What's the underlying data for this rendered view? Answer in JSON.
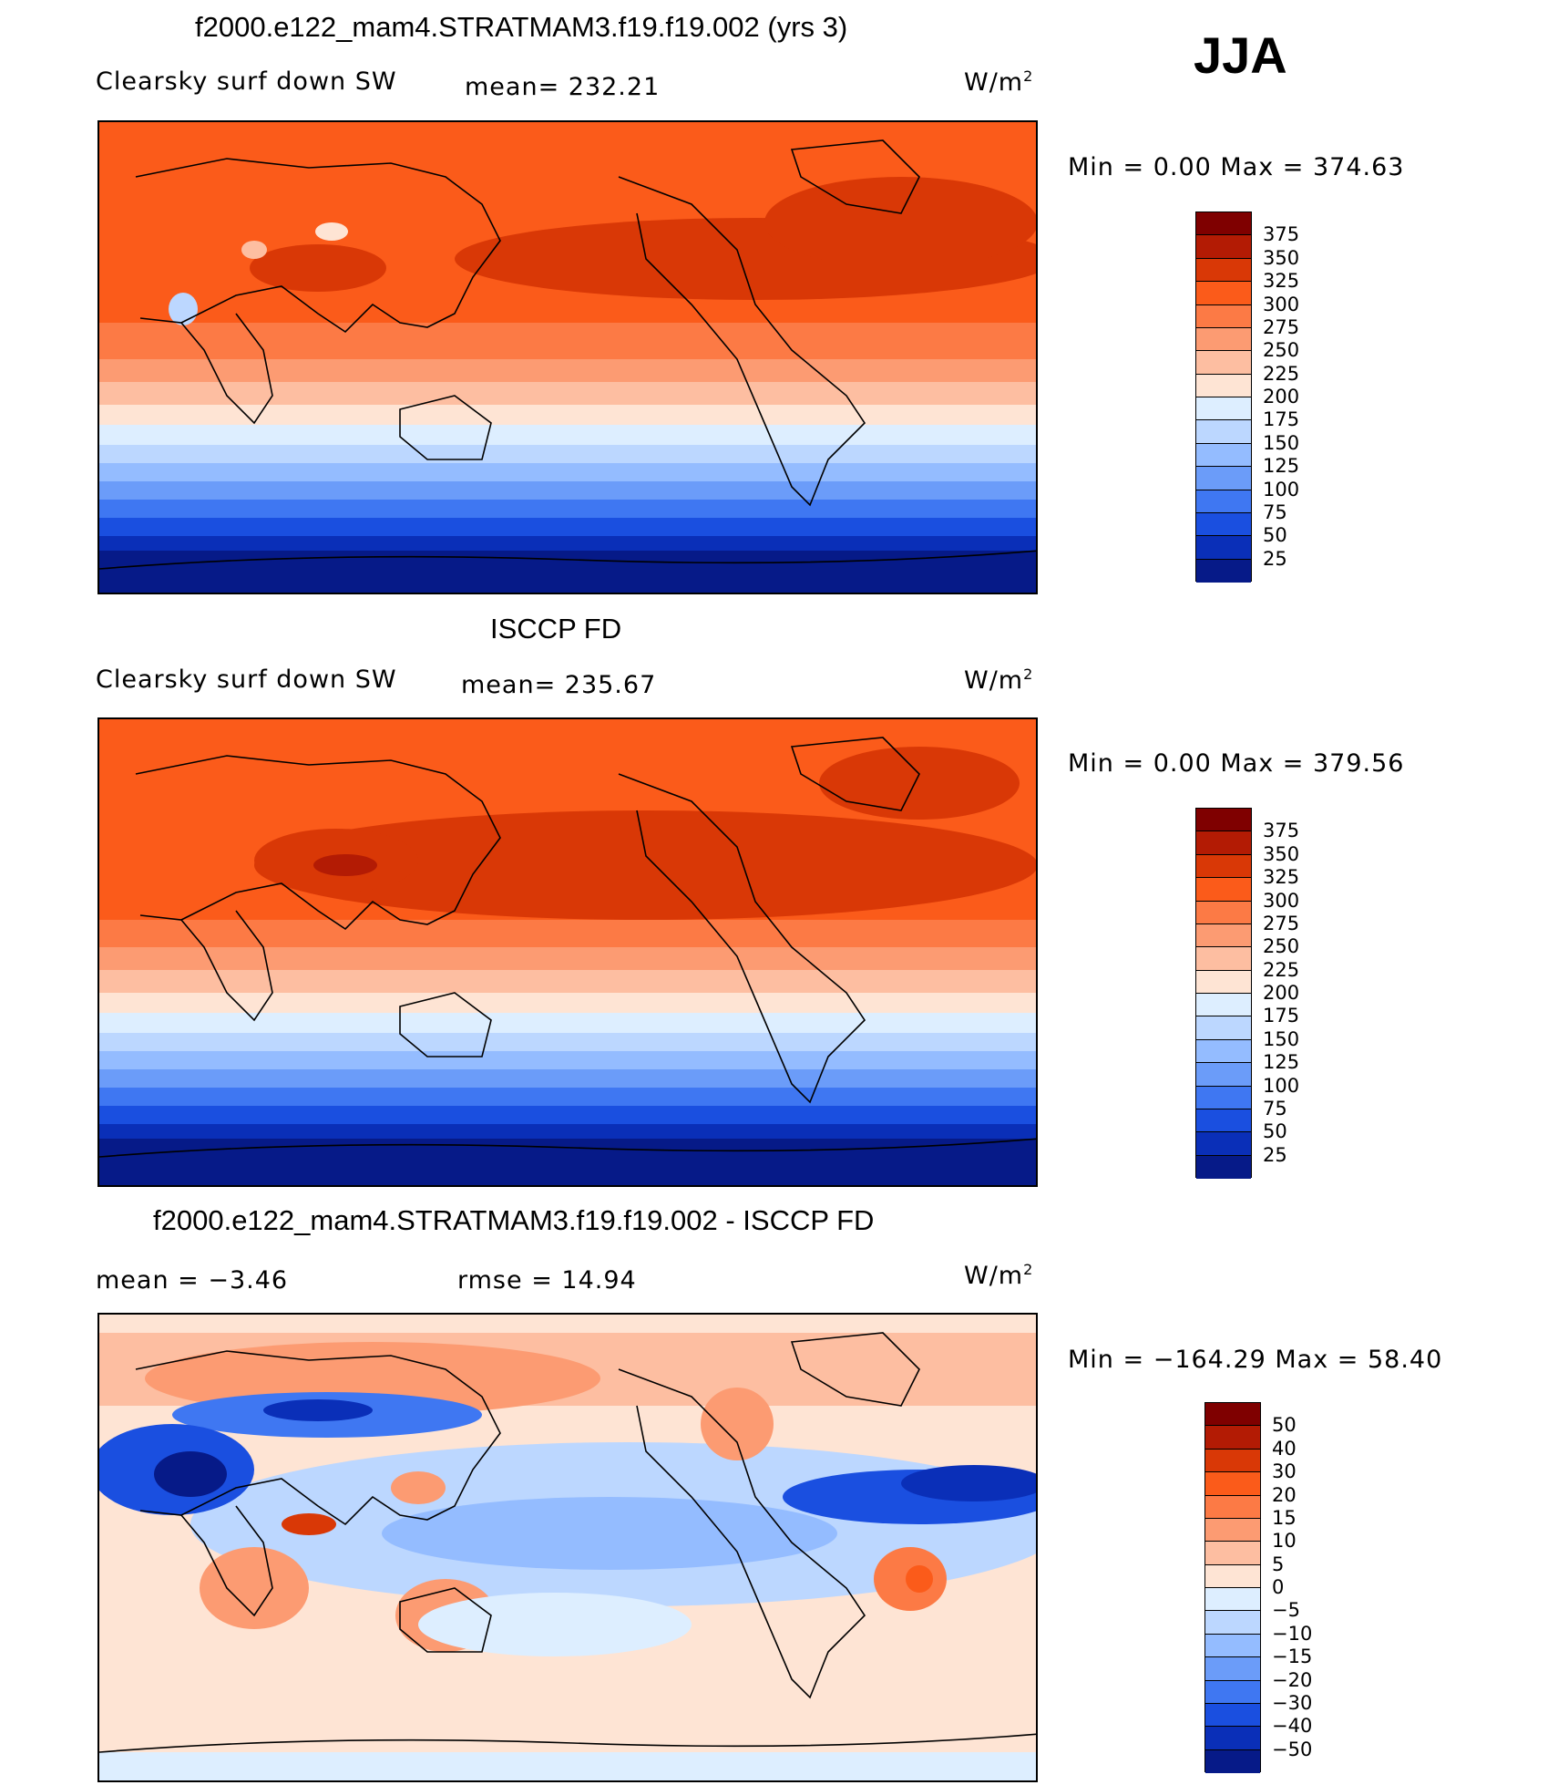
{
  "season": "JJA",
  "unit_label": "W/m",
  "unit_power": "2",
  "panels": [
    {
      "title": "f2000.e122_mam4.STRATMAM3.f19.f19.002 (yrs 3)",
      "variable": "Clearsky surf down SW",
      "stat": "mean= 232.21",
      "range": "Min =     0.00  Max  =  374.63",
      "levels": [
        "375",
        "350",
        "325",
        "300",
        "275",
        "250",
        "225",
        "200",
        "175",
        "150",
        "125",
        "100",
        "75",
        "50",
        "25"
      ]
    },
    {
      "title": "ISCCP FD",
      "variable": "Clearsky surf down SW",
      "stat": "mean= 235.67",
      "range": "Min =     0.00  Max  =  379.56",
      "levels": [
        "375",
        "350",
        "325",
        "300",
        "275",
        "250",
        "225",
        "200",
        "175",
        "150",
        "125",
        "100",
        "75",
        "50",
        "25"
      ]
    },
    {
      "title": "f2000.e122_mam4.STRATMAM3.f19.f19.002 - ISCCP FD",
      "variable": "mean  =    −3.46",
      "stat": "rmse  =    14.94",
      "range": "Min  = −164.29  Max  =    58.40",
      "levels": [
        "50",
        "40",
        "30",
        "20",
        "15",
        "10",
        "5",
        "0",
        "−5",
        "−10",
        "−15",
        "−20",
        "−30",
        "−40",
        "−50"
      ]
    }
  ],
  "colors": {
    "absolute_scale": [
      "#7f0000",
      "#b31b04",
      "#d93806",
      "#fb5b1a",
      "#fc7a45",
      "#fc9b72",
      "#fdbea1",
      "#fee4d4",
      "#ddeeff",
      "#bcd7ff",
      "#94bcff",
      "#6b9cf9",
      "#3f77f2",
      "#1a4fe0",
      "#0a2fb8",
      "#061a88"
    ],
    "difference_scale": [
      "#7f0000",
      "#b31b04",
      "#d93806",
      "#fb5b1a",
      "#fc7a45",
      "#fc9b72",
      "#fdbea1",
      "#fee4d4",
      "#ddeeff",
      "#bcd7ff",
      "#94bcff",
      "#6b9cf9",
      "#3f77f2",
      "#1a4fe0",
      "#0a2fb8",
      "#061a88"
    ]
  }
}
